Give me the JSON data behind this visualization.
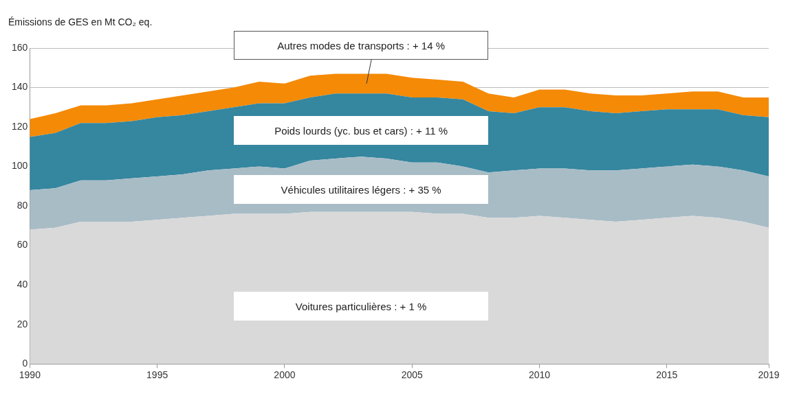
{
  "chart_data": {
    "type": "area",
    "stacked": true,
    "ylabel": "Émissions de GES en Mt CO₂ eq.",
    "x": [
      1990,
      1991,
      1992,
      1993,
      1994,
      1995,
      1996,
      1997,
      1998,
      1999,
      2000,
      2001,
      2002,
      2003,
      2004,
      2005,
      2006,
      2007,
      2008,
      2009,
      2010,
      2011,
      2012,
      2013,
      2014,
      2015,
      2016,
      2017,
      2018,
      2019
    ],
    "xlim": [
      1990,
      2019
    ],
    "xticks": [
      1990,
      1995,
      2000,
      2005,
      2010,
      2015,
      2019
    ],
    "ylim": [
      0,
      160
    ],
    "yticks": [
      0,
      20,
      40,
      60,
      80,
      100,
      120,
      140,
      160
    ],
    "grid": "y",
    "legend": false,
    "marker": "none",
    "series": [
      {
        "name": "Voitures particulières : + 1 %",
        "color": "#d9d9d9",
        "values": [
          68,
          69,
          72,
          72,
          72,
          73,
          74,
          75,
          76,
          76,
          76,
          77,
          77,
          77,
          77,
          77,
          76,
          76,
          74,
          74,
          75,
          74,
          73,
          72,
          73,
          74,
          75,
          74,
          72,
          69
        ]
      },
      {
        "name": "Véhicules utilitaires légers : + 35 %",
        "color": "#a8bcc6",
        "values": [
          20,
          20,
          21,
          21,
          22,
          22,
          22,
          23,
          23,
          24,
          23,
          26,
          27,
          28,
          27,
          25,
          26,
          24,
          23,
          24,
          24,
          25,
          25,
          26,
          26,
          26,
          26,
          26,
          26,
          26
        ]
      },
      {
        "name": "Poids lourds (yc. bus et cars) : + 11 %",
        "color": "#35869f",
        "values": [
          27,
          28,
          29,
          29,
          29,
          30,
          30,
          30,
          31,
          32,
          33,
          32,
          33,
          32,
          33,
          33,
          33,
          34,
          31,
          29,
          31,
          31,
          30,
          29,
          29,
          29,
          28,
          29,
          28,
          30
        ]
      },
      {
        "name": "Autres modes de transports : + 14 %",
        "color": "#f58a07",
        "values": [
          9,
          10,
          9,
          9,
          9,
          9,
          10,
          10,
          10,
          11,
          10,
          11,
          10,
          10,
          10,
          10,
          9,
          9,
          9,
          8,
          9,
          9,
          9,
          9,
          8,
          8,
          9,
          9,
          9,
          10
        ]
      }
    ]
  }
}
